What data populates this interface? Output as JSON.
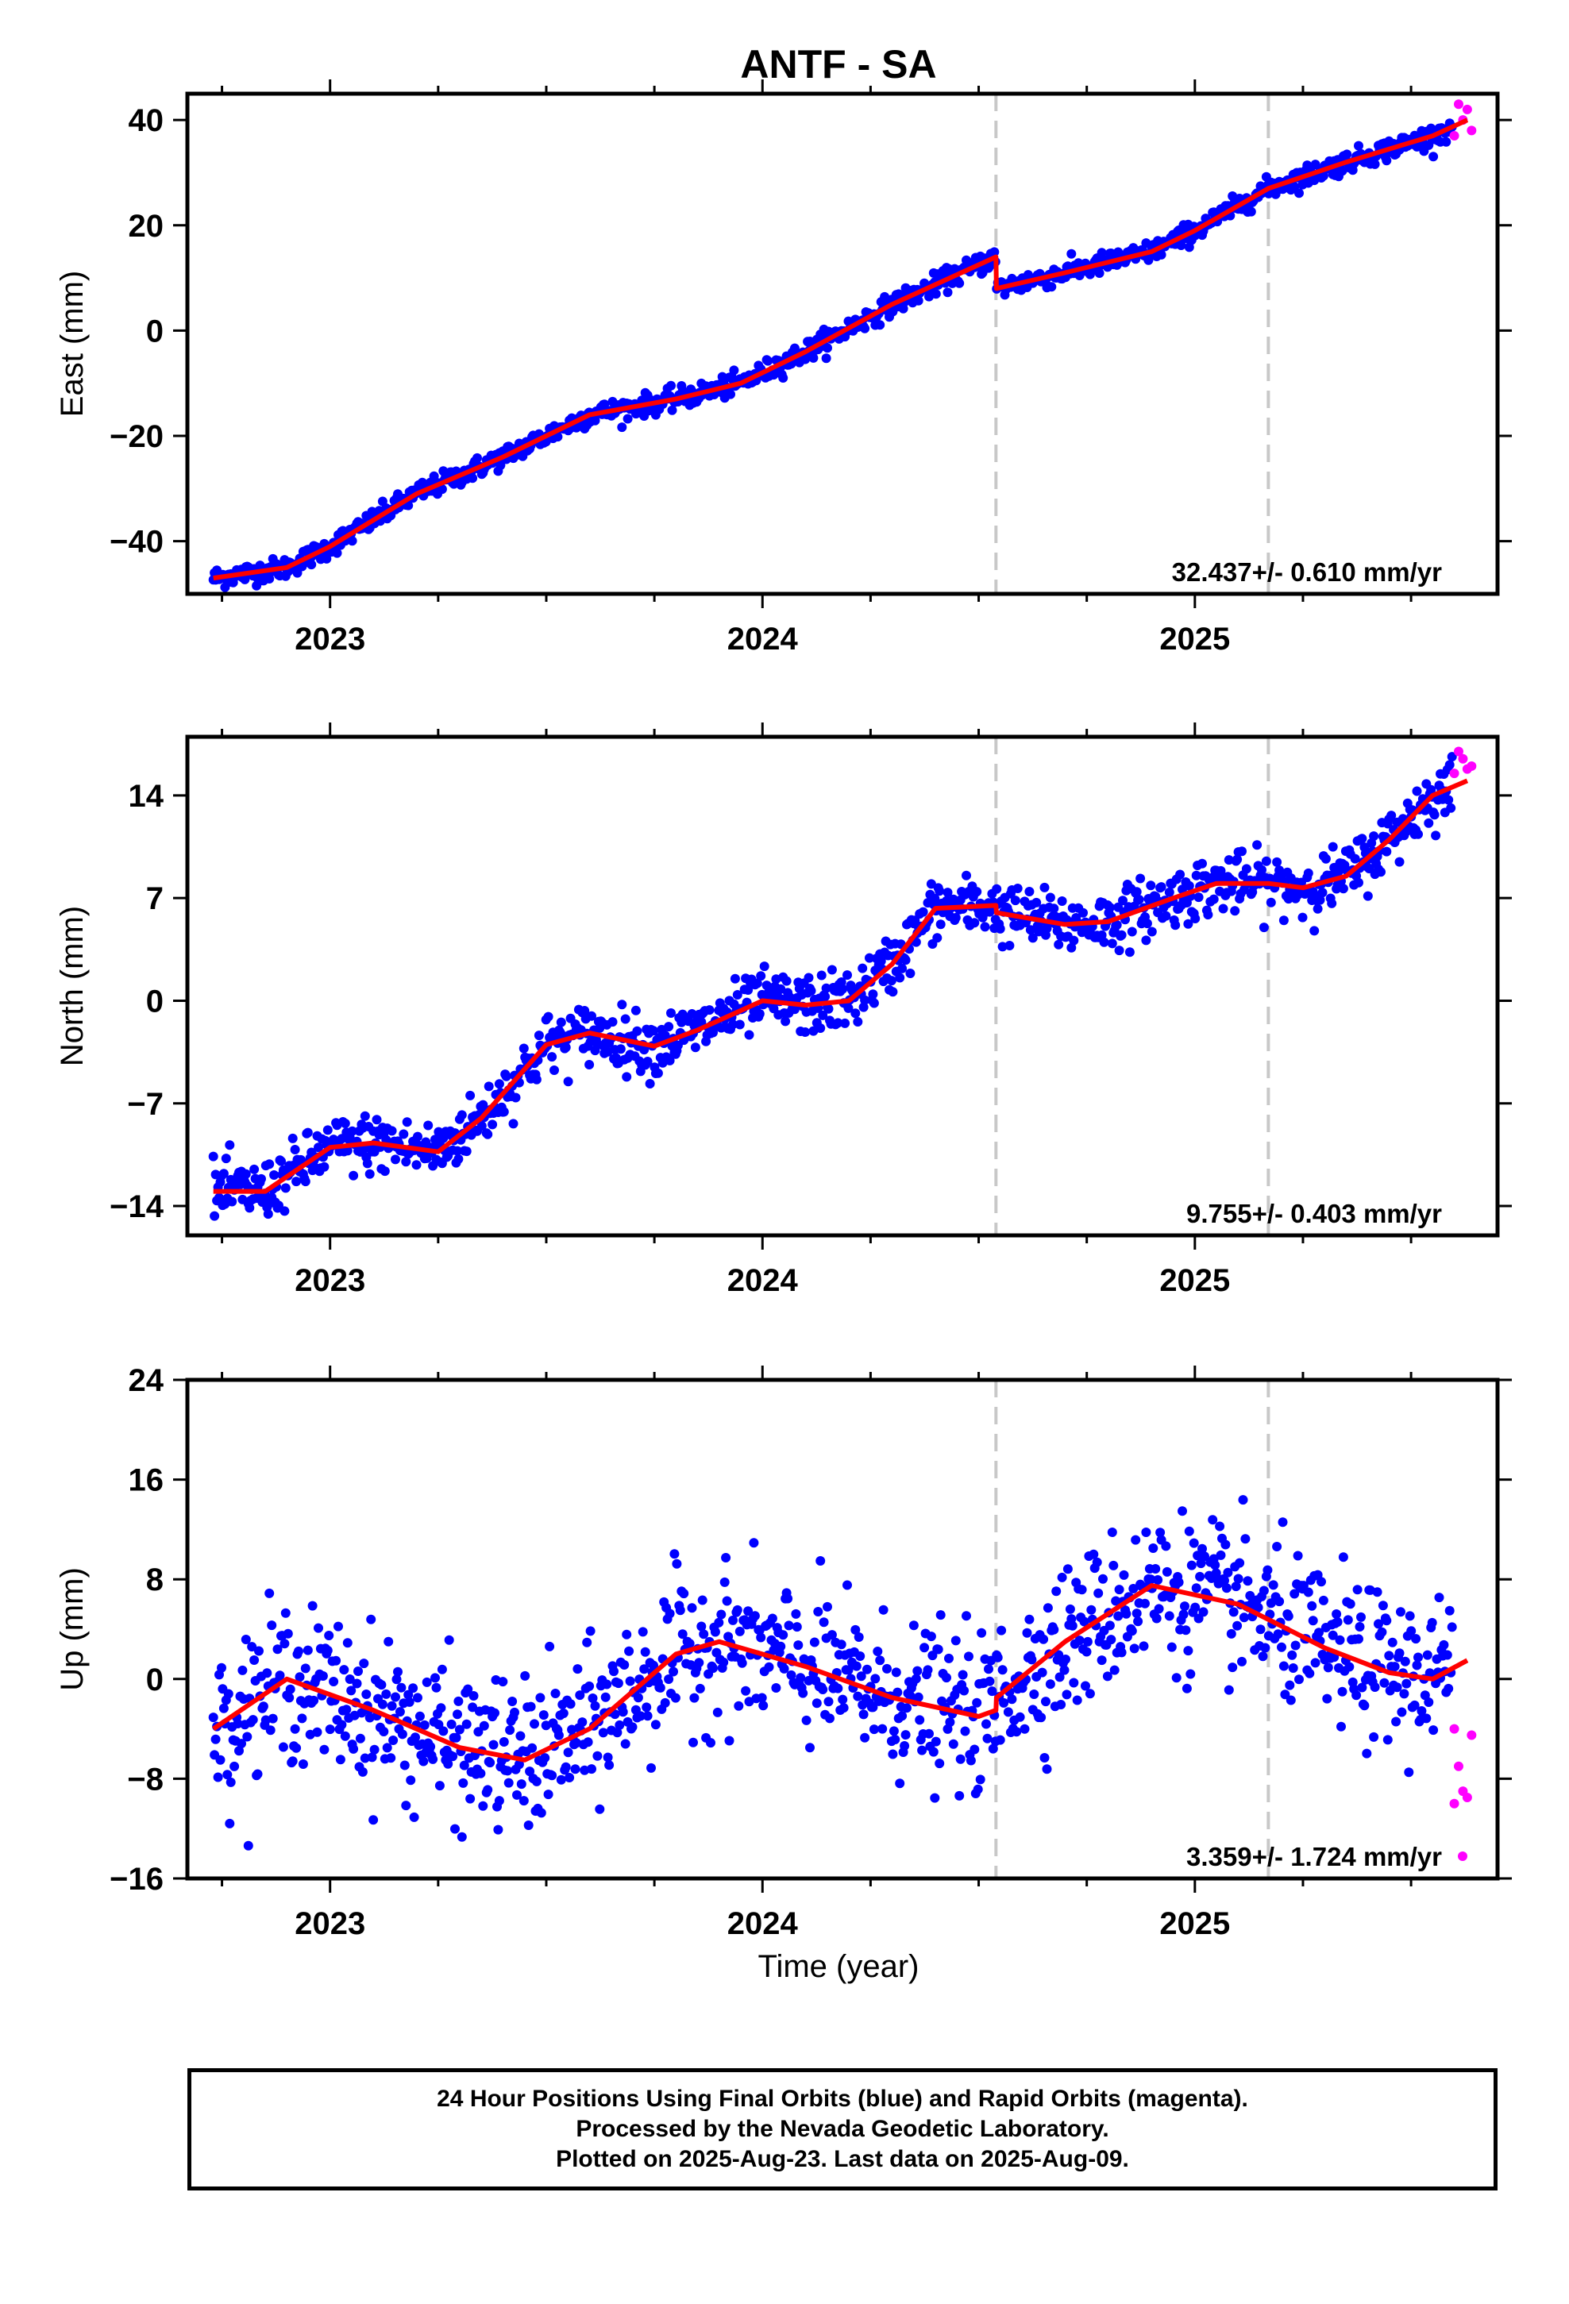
{
  "title": "ANTF - SA",
  "x_axis_label": "Time (year)",
  "colors": {
    "final": "#0000ff",
    "rapid": "#ff00ff",
    "model": "#ff0000",
    "break": "#c8c8c8"
  },
  "footer": {
    "line1": "24 Hour Positions Using Final Orbits (blue) and Rapid Orbits (magenta).",
    "line2": "Processed by the Nevada Geodetic Laboratory.",
    "line3": "Plotted on 2025-Aug-23. Last data on 2025-Aug-09."
  },
  "chart_data": [
    {
      "type": "scatter",
      "panel": "east",
      "ylabel": "East (mm)",
      "rate_label": "32.437+/- 0.610 mm/yr",
      "xlim": [
        2022.67,
        2025.7
      ],
      "ylim": [
        -50,
        45
      ],
      "xticks": [
        2023,
        2024,
        2025
      ],
      "yticks": [
        40,
        20,
        0,
        -20,
        -40
      ],
      "breaks": [
        2024.54,
        2025.17
      ],
      "trend_mm_per_yr": 32.437,
      "noise_mm": 1.0,
      "model": {
        "x": [
          2022.73,
          2022.9,
          2023.0,
          2023.2,
          2023.4,
          2023.6,
          2023.8,
          2023.95,
          2024.1,
          2024.3,
          2024.54,
          2024.541,
          2024.7,
          2024.9,
          2025.0,
          2025.17,
          2025.35,
          2025.55,
          2025.63
        ],
        "y": [
          -47,
          -45,
          -41,
          -31,
          -24,
          -16,
          -13,
          -10,
          -4,
          5,
          14,
          8,
          11,
          15,
          19,
          27,
          32,
          37,
          40
        ]
      },
      "rapid": {
        "x": [
          2025.6,
          2025.61,
          2025.62,
          2025.63,
          2025.64
        ],
        "y": [
          37,
          43,
          40,
          42,
          38
        ]
      }
    },
    {
      "type": "scatter",
      "panel": "north",
      "ylabel": "North (mm)",
      "rate_label": "9.755+/- 0.403 mm/yr",
      "xlim": [
        2022.67,
        2025.7
      ],
      "ylim": [
        -16,
        18
      ],
      "xticks": [
        2023,
        2024,
        2025
      ],
      "yticks": [
        14,
        7,
        0,
        -7,
        -14
      ],
      "breaks": [
        2024.54,
        2025.17
      ],
      "trend_mm_per_yr": 9.755,
      "noise_mm": 1.0,
      "model": {
        "x": [
          2022.73,
          2022.85,
          2023.0,
          2023.1,
          2023.25,
          2023.35,
          2023.5,
          2023.6,
          2023.75,
          2023.85,
          2024.0,
          2024.1,
          2024.2,
          2024.3,
          2024.4,
          2024.54,
          2024.541,
          2024.7,
          2024.8,
          2024.95,
          2025.05,
          2025.17,
          2025.25,
          2025.35,
          2025.45,
          2025.55,
          2025.63
        ],
        "y": [
          -13,
          -13,
          -10,
          -9.7,
          -10.3,
          -8,
          -3,
          -2.2,
          -3.1,
          -2,
          0,
          -0.3,
          0,
          2.5,
          6.3,
          6.5,
          6,
          5.2,
          5.4,
          7,
          8,
          8,
          7.7,
          8.5,
          11,
          14,
          15
        ]
      },
      "rapid": {
        "x": [
          2025.6,
          2025.61,
          2025.62,
          2025.63,
          2025.64
        ],
        "y": [
          15.5,
          17,
          16.5,
          15.8,
          16
        ]
      }
    },
    {
      "type": "scatter",
      "panel": "up",
      "ylabel": "Up (mm)",
      "rate_label": "3.359+/- 1.724 mm/yr",
      "xlim": [
        2022.67,
        2025.7
      ],
      "ylim": [
        -16,
        24
      ],
      "xticks": [
        2023,
        2024,
        2025
      ],
      "yticks": [
        24,
        16,
        8,
        0,
        -8,
        -16
      ],
      "breaks": [
        2024.54,
        2025.17
      ],
      "trend_mm_per_yr": 3.359,
      "noise_mm": 3.0,
      "model": {
        "x": [
          2022.73,
          2022.9,
          2023.1,
          2023.3,
          2023.45,
          2023.6,
          2023.8,
          2023.9,
          2024.1,
          2024.3,
          2024.5,
          2024.54,
          2024.541,
          2024.7,
          2024.9,
          2025.1,
          2025.3,
          2025.45,
          2025.55,
          2025.63
        ],
        "y": [
          -4,
          0,
          -2.5,
          -5.5,
          -6.5,
          -4,
          2,
          3,
          1,
          -1.5,
          -3,
          -2.5,
          -1.5,
          3,
          7.5,
          6,
          2.5,
          0.5,
          0,
          1.5
        ]
      },
      "rapid": {
        "x": [
          2025.6,
          2025.61,
          2025.62,
          2025.63,
          2025.64,
          2025.6
        ],
        "y": [
          -4,
          -7,
          -9,
          -9.5,
          -4.5,
          -10
        ]
      }
    }
  ]
}
